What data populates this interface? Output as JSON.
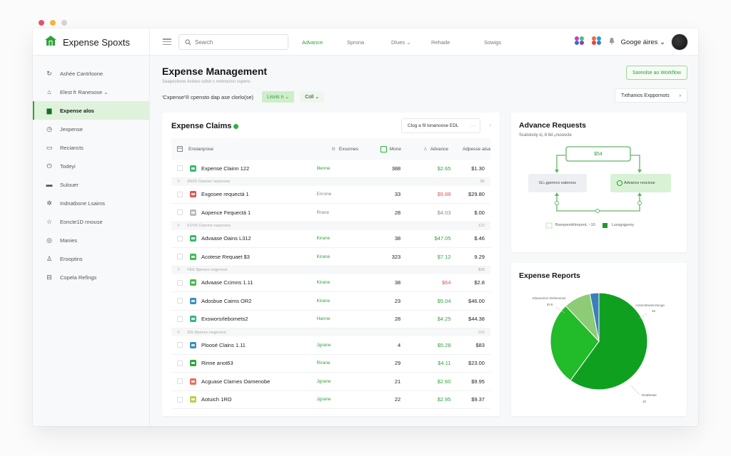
{
  "window": {
    "traffic_colors": [
      "#e0586b",
      "#f0b93c",
      "#d4d4d4"
    ]
  },
  "brand": {
    "title": "Expense Spoxts",
    "logo_color": "#2fa33d"
  },
  "topbar": {
    "search_placeholder": "Search",
    "nav": [
      {
        "label": "Advance",
        "active": true
      },
      {
        "label": "Sprona",
        "active": false
      },
      {
        "label": "Dlues ⌄",
        "active": false
      },
      {
        "label": "Rehade",
        "active": false
      },
      {
        "label": "Sowigs",
        "active": false
      }
    ],
    "user_name": "Googe áires ⌄"
  },
  "sidebar": {
    "items": [
      {
        "label": "Ashée Cantrloone",
        "icon": "refresh-icon",
        "glyph": "↻",
        "active": false
      },
      {
        "label": "Elest fr Ranesose ⌄",
        "icon": "home-icon",
        "glyph": "⌂",
        "active": false
      },
      {
        "label": "Expense alos",
        "icon": "chart-icon",
        "glyph": "▆",
        "active": true
      },
      {
        "label": "Jexpense",
        "icon": "compass-icon",
        "glyph": "◷",
        "active": false
      },
      {
        "label": "Reciancts",
        "icon": "image-icon",
        "glyph": "▭",
        "active": false
      },
      {
        "label": "Todeyi",
        "icon": "power-icon",
        "glyph": "⏻",
        "active": false
      },
      {
        "label": "Sulouer",
        "icon": "card-icon",
        "glyph": "▬",
        "active": false
      },
      {
        "label": "Indnatbsne Lsaims",
        "icon": "bug-icon",
        "glyph": "✲",
        "active": false
      },
      {
        "label": "Eoncte1D nnouse",
        "icon": "star-icon",
        "glyph": "☆",
        "active": false
      },
      {
        "label": "Manies",
        "icon": "coin-icon",
        "glyph": "◎",
        "active": false
      },
      {
        "label": "Erooptins",
        "icon": "person-icon",
        "glyph": "♙",
        "active": false
      },
      {
        "label": "Copela Refings",
        "icon": "cart-icon",
        "glyph": "⊟",
        "active": false
      }
    ]
  },
  "header": {
    "title": "Expense Management",
    "subtitle": "Saapocitone Aviows sdlstr c molnocisn sspens",
    "filter_label": "'Cxpense'® cpensto dap ase clorlo(se)",
    "chip1": "Lisvis n ⌄",
    "chip2": "Coll ⌄",
    "workflow_button": "Sareolse ao Workflow",
    "export_button": "Txthanios Exppornots",
    "export_chevron": "›"
  },
  "claims": {
    "title": "Expense Claims",
    "select_label": "Clog a fil lonanoose EDL",
    "select_more": "⋯",
    "next": "›",
    "columns": {
      "name": "Enstarqrose",
      "status": "Exsornes",
      "count": "Mone",
      "advance": "Advance",
      "total": "Adpesse aisa"
    },
    "rows": [
      {
        "type": "row",
        "name": "Expense Clainn 122",
        "icon_color": "#3cb872",
        "status": "Illenne",
        "status_color": "#2fa33d",
        "count": "388",
        "advance": "$2.65",
        "advance_color": "#2fa33d",
        "total": "$1.30"
      },
      {
        "type": "sub",
        "label": "300/5 Oamner neporone",
        "value": "$5"
      },
      {
        "type": "row",
        "name": "Exgosee requectá 1",
        "icon_color": "#e05656",
        "status": "Enrone",
        "status_color": "#888888",
        "count": "33",
        "advance": "$9.88",
        "advance_color": "#e05656",
        "total": "$29.80"
      },
      {
        "type": "row",
        "name": "Aopence Fequectá 1",
        "icon_color": "#bbbbbb",
        "status": "Rrane",
        "status_color": "#888888",
        "count": "28",
        "advance": "$4.03",
        "advance_color": "#888888",
        "total": "$.00"
      },
      {
        "type": "sub",
        "label": "X1/V5 Oamme neporone",
        "value": "122"
      },
      {
        "type": "row",
        "name": "Advaase Oains L312",
        "icon_color": "#3cb872",
        "status": "Kirane",
        "status_color": "#2fa33d",
        "count": "38",
        "advance": "$47.05",
        "advance_color": "#2fa33d",
        "total": "$.46"
      },
      {
        "type": "row",
        "name": "Acotese Requaet $3",
        "icon_color": "#47b84f",
        "status": "Kirane",
        "status_color": "#2fa33d",
        "count": "323",
        "advance": "$7.12",
        "advance_color": "#2fa33d",
        "total": "9.29"
      },
      {
        "type": "sub",
        "label": "VEE Bpenen reqpronul",
        "value": "$28"
      },
      {
        "type": "row",
        "name": "Advaase Ccimns 1.11",
        "icon_color": "#47b84f",
        "status": "Kirane",
        "status_color": "#2fa33d",
        "count": "38",
        "advance": "$64",
        "advance_color": "#e05656",
        "total": "$2.8"
      },
      {
        "type": "row",
        "name": "Adosbue Caims OR2",
        "icon_color": "#3b8fb8",
        "status": "Kirane",
        "status_color": "#2fa33d",
        "count": "23",
        "advance": "$5.04",
        "advance_color": "#2fa33d",
        "total": "$46.00"
      },
      {
        "type": "row",
        "name": "Exsworsrlebomets2",
        "icon_color": "#3ab38a",
        "status": "Hanne",
        "status_color": "#2fa33d",
        "count": "28",
        "advance": "$4.25",
        "advance_color": "#2fa33d",
        "total": "$44.38"
      },
      {
        "type": "sub",
        "label": "325 Bpenen reqpronul",
        "value": "222"
      },
      {
        "type": "row",
        "name": "Ploosé Clains 1.11",
        "icon_color": "#3b8fb8",
        "status": "Jgrane",
        "status_color": "#2fa33d",
        "count": "4",
        "advance": "$5.28",
        "advance_color": "#2fa33d",
        "total": "$83"
      },
      {
        "type": "row",
        "name": "Rinne anot63",
        "icon_color": "#2fa33d",
        "status": "Rirane",
        "status_color": "#2fa33d",
        "count": "29",
        "advance": "$4.11",
        "advance_color": "#2fa33d",
        "total": "$23.00"
      },
      {
        "type": "row",
        "name": "Acguase Clarnes Oamenobe",
        "icon_color": "#ef6a5a",
        "status": "Jgrane",
        "status_color": "#2fa33d",
        "count": "21",
        "advance": "$2.60",
        "advance_color": "#2fa33d",
        "total": "$9.95"
      },
      {
        "type": "row",
        "name": "Aotuich 1RO",
        "icon_color": "#b9cf4a",
        "status": "Jgrane",
        "status_color": "#2fa33d",
        "count": "22",
        "advance": "$2.95",
        "advance_color": "#2fa33d",
        "total": "$9.37"
      }
    ]
  },
  "advance": {
    "title": "Advance Requests",
    "subtitle": "Scalslosly d₃ 8 6d ₑrsooscle",
    "top_node": "$54",
    "left_node": "G/₄ gpornco ealeroos",
    "right_node": "Advance reocixue",
    "legend": [
      {
        "label": "Bxeeperdélrepoot, ~10",
        "color": "#e6f5e4"
      },
      {
        "label": "Lsxsgrgpooy",
        "color": "#1f9a2e"
      }
    ]
  },
  "reports": {
    "title": "Expense Reports"
  },
  "chart_data": {
    "type": "pie",
    "title": "Expense Reports",
    "slices": [
      {
        "label": "Reatbeate",
        "value": 60,
        "display": "10",
        "color": "#10a020"
      },
      {
        "label": "(unlabeled)",
        "value": 28,
        "display": "",
        "color": "#22bb2a"
      },
      {
        "label": "Elaesenton Dnletoonse",
        "value": 9,
        "display": "iD-8",
        "color": "#8dcb76"
      },
      {
        "label": "Acted Mneterrdnoga",
        "value": 3,
        "display": "45",
        "color": "#3a80b8"
      }
    ],
    "legend_position": "callouts"
  }
}
